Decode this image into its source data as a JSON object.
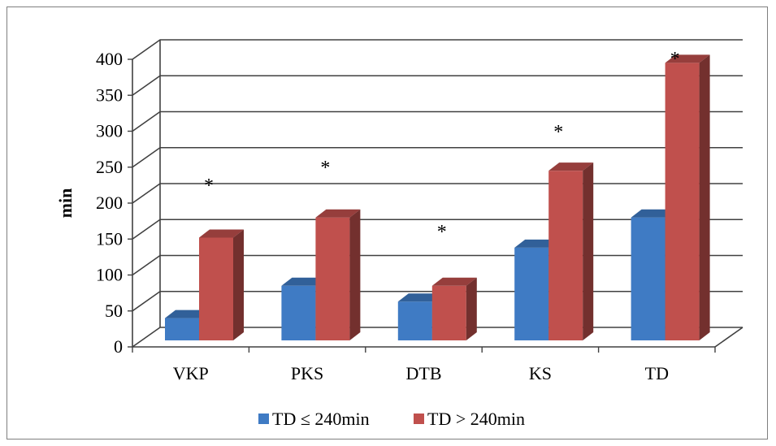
{
  "chart_data": {
    "type": "bar",
    "style": "3d-clustered-column",
    "categories": [
      "VKP",
      "PKS",
      "DTB",
      "KS",
      "TD"
    ],
    "series": [
      {
        "name": "TD ≤ 240min",
        "color": "#3f7bc4",
        "values": [
          40,
          85,
          63,
          138,
          180
        ]
      },
      {
        "name": "TD > 240min",
        "color": "#c0504d",
        "values": [
          152,
          180,
          85,
          245,
          395
        ]
      }
    ],
    "annotations": [
      "*",
      "*",
      "*",
      "*",
      "*"
    ],
    "ylabel": "min",
    "xlabel": "",
    "title": "",
    "ylim": [
      0,
      400
    ],
    "yticks": [
      0,
      50,
      100,
      150,
      200,
      250,
      300,
      350,
      400
    ],
    "grid": true,
    "legend": "bottom"
  }
}
